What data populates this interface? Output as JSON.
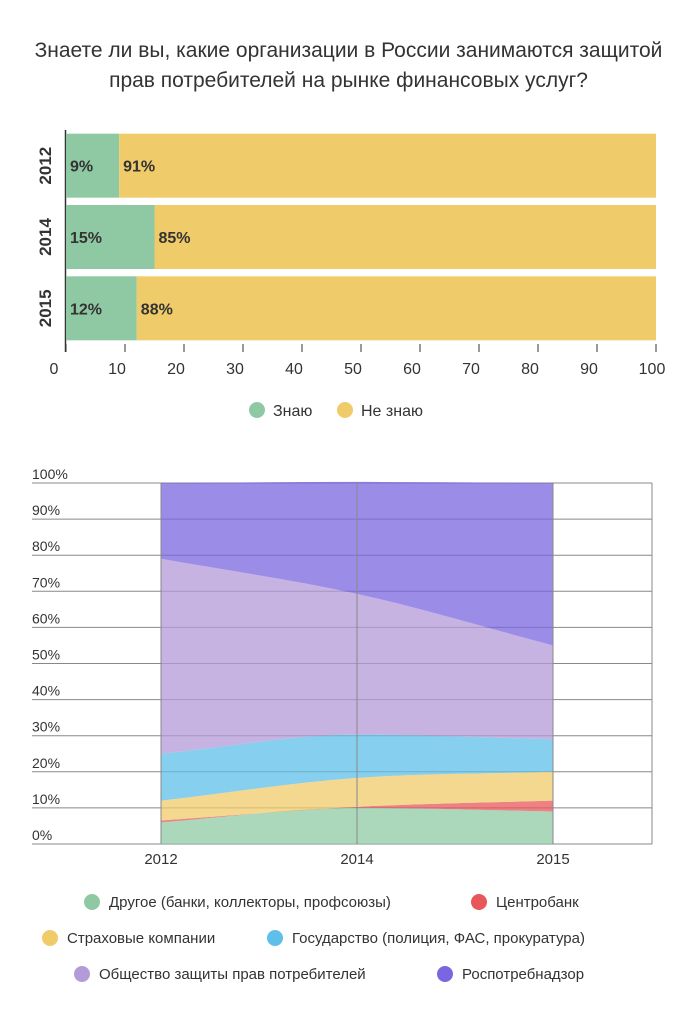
{
  "title": "Знаете ли вы, какие организации в России занимаются защитой прав потребителей на рынке финансовых услуг?",
  "chart_data": [
    {
      "type": "bar",
      "orientation": "horizontal",
      "stacked": true,
      "categories": [
        "2012",
        "2014",
        "2015"
      ],
      "series": [
        {
          "name": "Знаю",
          "color": "#8fc9a3",
          "values": [
            9,
            15,
            12
          ],
          "labels": [
            "9%",
            "15%",
            "12%"
          ]
        },
        {
          "name": "Не знаю",
          "color": "#f0cb69",
          "values": [
            91,
            85,
            88
          ],
          "labels": [
            "91%",
            "85%",
            "88%"
          ]
        }
      ],
      "xlim": [
        0,
        100
      ],
      "xticks": [
        "0",
        "10",
        "20",
        "30",
        "40",
        "50",
        "60",
        "70",
        "80",
        "90",
        "100"
      ],
      "legend_position": "bottom"
    },
    {
      "type": "area",
      "stacked": true,
      "x": [
        "2012",
        "2014",
        "2015"
      ],
      "series": [
        {
          "name": "Другое (банки, коллекторы, профсоюзы)",
          "color": "#8fc9a3",
          "values": [
            6,
            10,
            9
          ]
        },
        {
          "name": "Центробанк",
          "color": "#e8575a",
          "values": [
            0.5,
            0.3,
            3
          ]
        },
        {
          "name": "Страховые компании",
          "color": "#f0cb69",
          "values": [
            5.5,
            8,
            8
          ]
        },
        {
          "name": "Государство (полиция, ФАС, прокуратура)",
          "color": "#5fbfe8",
          "values": [
            13,
            12,
            9
          ]
        },
        {
          "name": "Общество защиты прав потребителей",
          "color": "#b39ad8",
          "values": [
            54,
            39,
            26
          ]
        },
        {
          "name": "Роспотребнадзор",
          "color": "#7a66e0",
          "values": [
            21,
            31,
            45
          ]
        }
      ],
      "ylim": [
        0,
        100
      ],
      "yticks": [
        "0%",
        "10%",
        "20%",
        "30%",
        "40%",
        "50%",
        "60%",
        "70%",
        "80%",
        "90%",
        "100%"
      ],
      "grid": true,
      "legend_position": "bottom"
    }
  ]
}
